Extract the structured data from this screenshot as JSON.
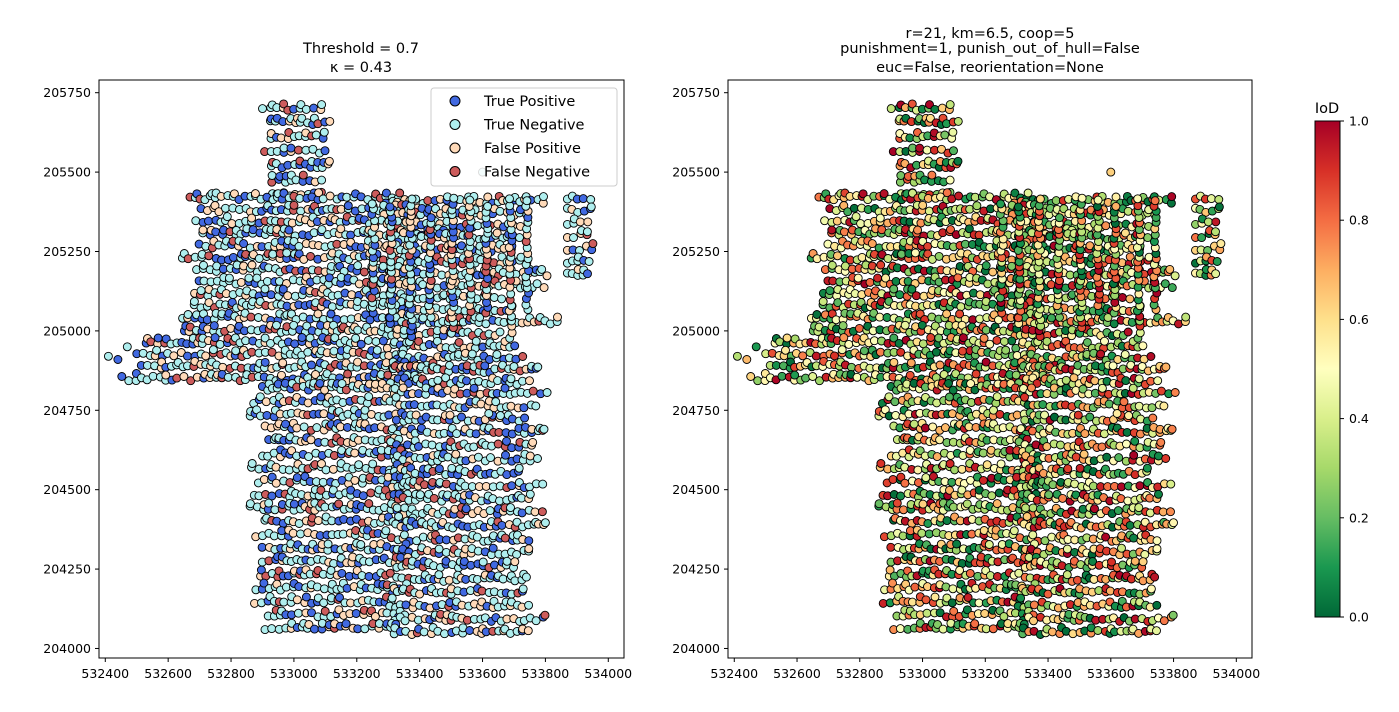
{
  "chart_data": [
    {
      "type": "scatter",
      "title_lines": [
        "Threshold = 0.7",
        "κ = 0.43"
      ],
      "xlabel": "",
      "ylabel": "",
      "xlim": [
        532380,
        534050
      ],
      "ylim": [
        203970,
        205790
      ],
      "xticks": [
        532400,
        532600,
        532800,
        533000,
        533200,
        533400,
        533600,
        533800,
        534000
      ],
      "yticks": [
        204000,
        204250,
        204500,
        204750,
        205000,
        205250,
        205500,
        205750
      ],
      "legend": {
        "placement": "top-right",
        "entries": [
          {
            "label": "True Positive",
            "color": "#4169e1"
          },
          {
            "label": "True Negative",
            "color": "#afeeee"
          },
          {
            "label": "False Positive",
            "color": "#ffdab9"
          },
          {
            "label": "False Negative",
            "color": "#cd5c5c"
          }
        ]
      },
      "grid": false,
      "marker_edge_color": "#000000",
      "note_points": "Dense point cloud (~2000 points) arranged along street-like rows; categories colored per legend."
    },
    {
      "type": "scatter",
      "title_lines": [
        "r=21, km=6.5, coop=5",
        "punishment=1, punish_out_of_hull=False",
        "euc=False, reorientation=None"
      ],
      "xlabel": "",
      "ylabel": "",
      "xlim": [
        532380,
        534050
      ],
      "ylim": [
        203970,
        205790
      ],
      "xticks": [
        532400,
        532600,
        532800,
        533000,
        533200,
        533400,
        533600,
        533800,
        534000
      ],
      "yticks": [
        204000,
        204250,
        204500,
        204750,
        205000,
        205250,
        205500,
        205750
      ],
      "grid": false,
      "colormap": "RdYlGn_r",
      "colorbar": {
        "title": "IoD",
        "range": [
          0.0,
          1.0
        ],
        "ticks": [
          "0.0",
          "0.2",
          "0.4",
          "0.6",
          "0.8",
          "1.0"
        ],
        "stops": [
          "#006837",
          "#1a9850",
          "#66bd63",
          "#a6d96a",
          "#d9ef8b",
          "#ffffbf",
          "#fee08b",
          "#fdae61",
          "#f46d43",
          "#d73027",
          "#a50026"
        ]
      }
    }
  ]
}
